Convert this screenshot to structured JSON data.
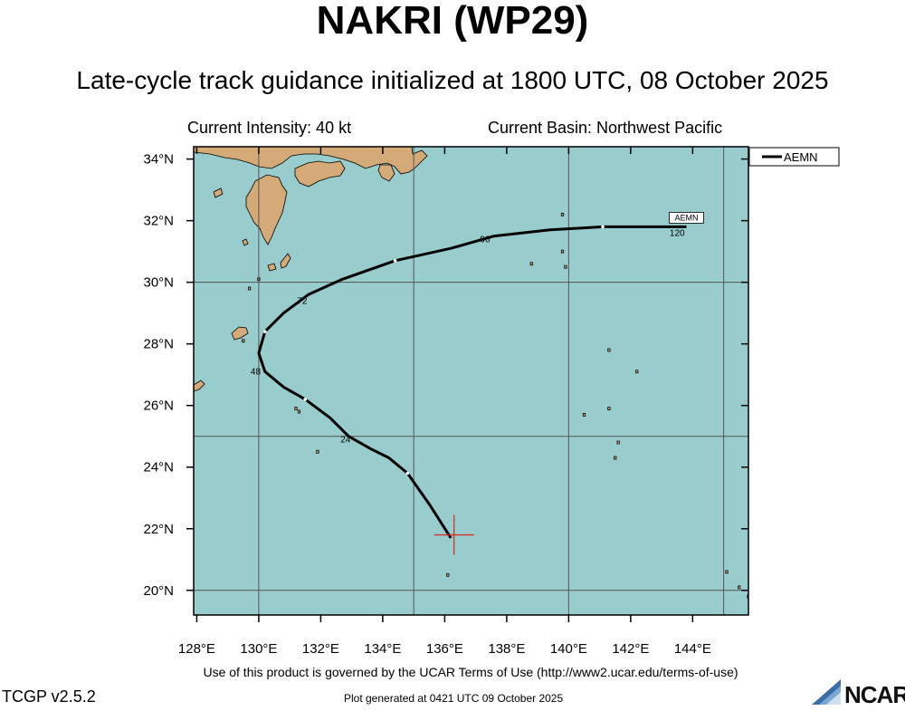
{
  "header": {
    "title": "NAKRI (WP29)",
    "subtitle": "Late-cycle track guidance initialized at 1800 UTC, 08 October 2025"
  },
  "info": {
    "intensity": "Current Intensity: 40 kt",
    "basin": "Current Basin: Northwest Pacific"
  },
  "map": {
    "lon_range": [
      127.9,
      145.8
    ],
    "lat_range": [
      19.2,
      34.4
    ],
    "lon_ticks": [
      "128°E",
      "130°E",
      "132°E",
      "134°E",
      "136°E",
      "138°E",
      "140°E",
      "142°E",
      "144°E"
    ],
    "lat_ticks": [
      "20°N",
      "22°N",
      "24°N",
      "26°N",
      "28°N",
      "30°N",
      "32°N",
      "34°N"
    ],
    "grid_lons": [
      130,
      135,
      140,
      145
    ],
    "grid_lats": [
      20,
      25,
      30
    ],
    "colors": {
      "ocean": "#99cccc",
      "land": "#d4aa78",
      "track": "#000000",
      "current_position": "#d0312d",
      "grid": "#555555"
    }
  },
  "track": {
    "model": "AEMN",
    "points": [
      {
        "lon": 136.2,
        "lat": 21.7
      },
      {
        "lon": 135.5,
        "lat": 22.8
      },
      {
        "lon": 134.8,
        "lat": 23.8
      },
      {
        "lon": 134.2,
        "lat": 24.3
      },
      {
        "lon": 133.6,
        "lat": 24.6
      },
      {
        "lon": 132.9,
        "lat": 25.0
      },
      {
        "lon": 132.3,
        "lat": 25.6
      },
      {
        "lon": 131.5,
        "lat": 26.2
      },
      {
        "lon": 130.8,
        "lat": 26.6
      },
      {
        "lon": 130.2,
        "lat": 27.1
      },
      {
        "lon": 130.0,
        "lat": 27.7
      },
      {
        "lon": 130.2,
        "lat": 28.4
      },
      {
        "lon": 130.8,
        "lat": 29.0
      },
      {
        "lon": 131.6,
        "lat": 29.6
      },
      {
        "lon": 132.7,
        "lat": 30.1
      },
      {
        "lon": 134.4,
        "lat": 30.7
      },
      {
        "lon": 136.2,
        "lat": 31.1
      },
      {
        "lon": 137.6,
        "lat": 31.5
      },
      {
        "lon": 139.4,
        "lat": 31.7
      },
      {
        "lon": 141.1,
        "lat": 31.8
      },
      {
        "lon": 142.4,
        "lat": 31.8
      },
      {
        "lon": 143.8,
        "lat": 31.8
      }
    ],
    "markers": [
      {
        "lon": 134.8,
        "lat": 23.8
      },
      {
        "lon": 131.5,
        "lat": 26.2
      },
      {
        "lon": 130.2,
        "lat": 28.4
      },
      {
        "lon": 134.4,
        "lat": 30.7
      },
      {
        "lon": 141.1,
        "lat": 31.8
      }
    ],
    "hour_labels": [
      {
        "text": "24",
        "lon": 132.8,
        "lat": 24.8
      },
      {
        "text": "48",
        "lon": 129.9,
        "lat": 27.0
      },
      {
        "text": "72",
        "lon": 131.4,
        "lat": 29.3
      },
      {
        "text": "96",
        "lon": 137.3,
        "lat": 31.3
      },
      {
        "text": "120",
        "lon": 143.5,
        "lat": 31.5
      }
    ],
    "end_label": "AEMN",
    "current_position": {
      "lon": 136.3,
      "lat": 21.8
    }
  },
  "legend": {
    "entries": [
      "AEMN"
    ],
    "placement": "top-right"
  },
  "footer": {
    "terms": "Use of this product is governed by the UCAR Terms of Use (http://www2.ucar.edu/terms-of-use)",
    "version": "TCGP v2.5.2",
    "generated": "Plot generated at 0421 UTC   09 October 2025",
    "logo_text": "NCAR"
  }
}
